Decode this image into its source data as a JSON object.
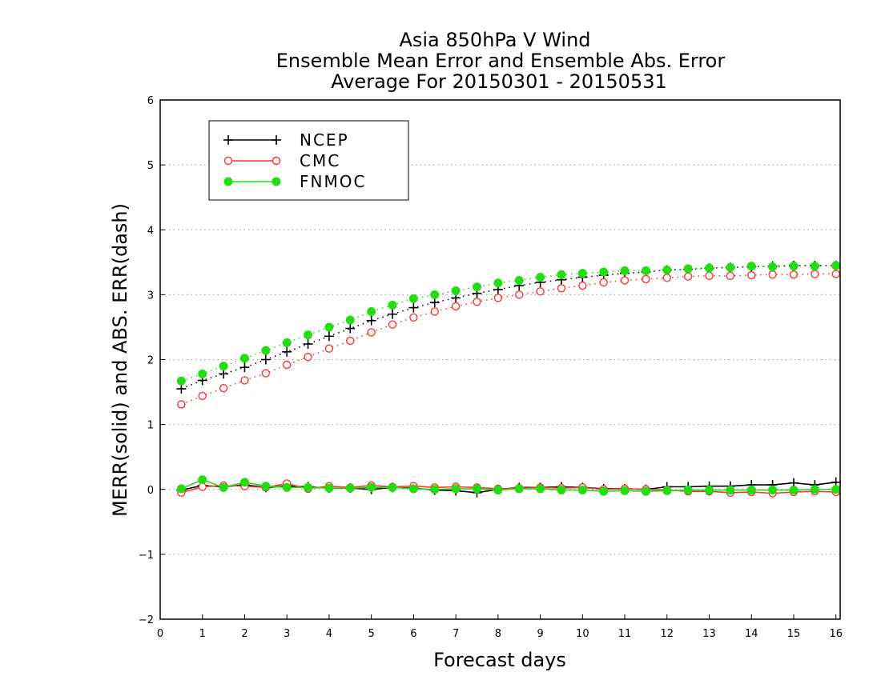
{
  "chart_data": {
    "type": "line",
    "title_lines": [
      "Asia 850hPa V Wind",
      "Ensemble Mean Error and Ensemble Abs. Error",
      "Average For 20150301 - 20150531"
    ],
    "xlabel": "Forecast days",
    "ylabel": "MERR(solid) and ABS. ERR(dash)",
    "xlim": [
      0,
      16.1
    ],
    "ylim": [
      -2,
      6
    ],
    "x_ticks": [
      0,
      1,
      2,
      3,
      4,
      5,
      6,
      7,
      8,
      9,
      10,
      11,
      12,
      13,
      14,
      15,
      16
    ],
    "y_ticks": [
      -2,
      -1,
      0,
      1,
      2,
      3,
      4,
      5,
      6
    ],
    "y_tick_labels": [
      "−2",
      "−1",
      "0",
      "1",
      "2",
      "3",
      "4",
      "5",
      "6"
    ],
    "grid": "horizontal dotted",
    "legend_position": "top-left",
    "x": [
      0.5,
      1,
      1.5,
      2,
      2.5,
      3,
      3.5,
      4,
      4.5,
      5,
      5.5,
      6,
      6.5,
      7,
      7.5,
      8,
      8.5,
      9,
      9.5,
      10,
      10.5,
      11,
      11.5,
      12,
      12.5,
      13,
      13.5,
      14,
      14.5,
      15,
      15.5,
      16
    ],
    "series": [
      {
        "name": "NCEP",
        "color": "#000000",
        "marker": "plus",
        "merr": [
          -0.01,
          0.06,
          0.04,
          0.07,
          0.03,
          0.05,
          0.04,
          0.02,
          0.02,
          0.0,
          0.03,
          0.02,
          -0.01,
          -0.02,
          -0.05,
          0.0,
          0.03,
          0.03,
          0.04,
          0.03,
          0.01,
          0.01,
          0.0,
          0.04,
          0.04,
          0.05,
          0.05,
          0.07,
          0.07,
          0.1,
          0.07,
          0.11
        ],
        "abs_err": [
          1.55,
          1.68,
          1.78,
          1.88,
          2.0,
          2.12,
          2.24,
          2.36,
          2.48,
          2.6,
          2.7,
          2.8,
          2.88,
          2.95,
          3.02,
          3.08,
          3.14,
          3.19,
          3.23,
          3.27,
          3.3,
          3.33,
          3.35,
          3.38,
          3.39,
          3.41,
          3.42,
          3.43,
          3.44,
          3.45,
          3.45,
          3.45
        ]
      },
      {
        "name": "CMC",
        "color": "#ff3333",
        "marker": "open-circle",
        "merr": [
          -0.05,
          0.04,
          0.06,
          0.05,
          0.03,
          0.09,
          0.01,
          0.05,
          0.03,
          0.06,
          0.04,
          0.05,
          0.03,
          0.04,
          0.03,
          0.01,
          0.02,
          0.03,
          0.02,
          0.03,
          0.0,
          0.01,
          0.0,
          -0.01,
          -0.03,
          -0.03,
          -0.05,
          -0.04,
          -0.06,
          -0.04,
          -0.03,
          -0.04
        ],
        "abs_err": [
          1.31,
          1.44,
          1.56,
          1.68,
          1.79,
          1.92,
          2.04,
          2.17,
          2.29,
          2.42,
          2.54,
          2.65,
          2.74,
          2.82,
          2.89,
          2.95,
          3.0,
          3.05,
          3.1,
          3.14,
          3.19,
          3.22,
          3.24,
          3.26,
          3.28,
          3.29,
          3.29,
          3.3,
          3.31,
          3.31,
          3.32,
          3.32
        ]
      },
      {
        "name": "FNMOC",
        "color": "#22dd11",
        "marker": "filled-circle",
        "merr": [
          0.01,
          0.15,
          0.03,
          0.11,
          0.05,
          0.03,
          0.03,
          0.02,
          0.02,
          0.03,
          0.03,
          0.01,
          0.0,
          0.01,
          0.01,
          -0.01,
          0.01,
          0.01,
          -0.01,
          -0.01,
          -0.03,
          -0.02,
          -0.03,
          -0.02,
          -0.01,
          -0.01,
          -0.01,
          -0.01,
          -0.01,
          -0.01,
          0.0,
          0.0
        ],
        "abs_err": [
          1.67,
          1.78,
          1.9,
          2.02,
          2.14,
          2.26,
          2.38,
          2.5,
          2.61,
          2.74,
          2.84,
          2.94,
          3.0,
          3.06,
          3.12,
          3.18,
          3.22,
          3.27,
          3.31,
          3.33,
          3.35,
          3.37,
          3.37,
          3.38,
          3.4,
          3.41,
          3.42,
          3.44,
          3.43,
          3.44,
          3.44,
          3.45
        ]
      }
    ]
  }
}
